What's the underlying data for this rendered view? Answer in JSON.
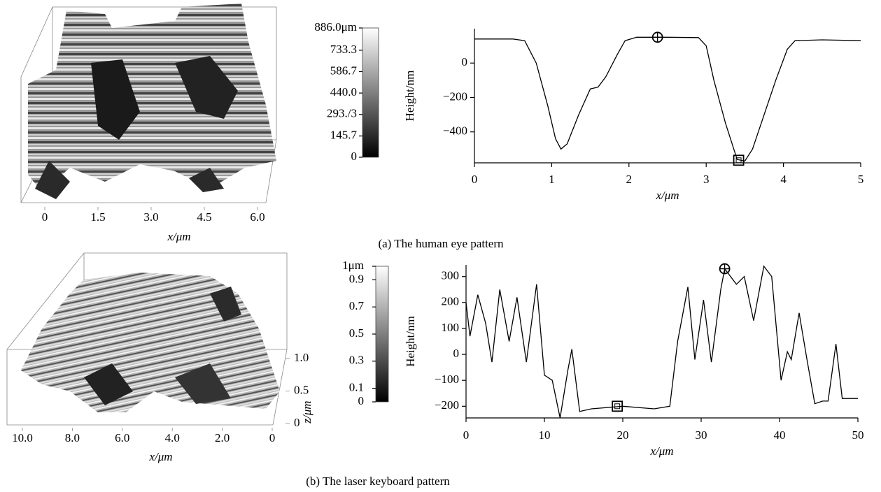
{
  "chart_data": [
    {
      "type": "surface",
      "xlabel": "x/μm",
      "xlim": [
        0,
        6
      ],
      "xticks": [
        0,
        1.5,
        {
          "value": 3,
          "label": "3.0"
        },
        4.5,
        {
          "value": 6,
          "label": "6.0"
        }
      ]
    },
    {
      "type": "colorbar",
      "ylim": [
        0,
        886
      ],
      "colors": [
        "#000000",
        "#ffffff"
      ],
      "yticks": [
        0,
        145.7,
        {
          "value": 293.3,
          "label": "293./3"
        },
        {
          "value": 440,
          "label": "440.0"
        },
        586.7,
        733.3,
        {
          "value": 886,
          "label": "886.0μm"
        }
      ]
    },
    {
      "type": "line",
      "xlabel": "x/μm",
      "ylabel": "Height/nm",
      "color": "#000000",
      "xlim": [
        0,
        5
      ],
      "ylim": [
        -580,
        200
      ],
      "xticks": [
        0,
        1,
        2,
        3,
        4,
        5
      ],
      "yticks": [
        {
          "value": -400,
          "label": "−400"
        },
        {
          "value": -200,
          "label": "−200"
        },
        0
      ],
      "x": [
        0,
        0.5,
        0.65,
        0.8,
        0.95,
        1.05,
        1.12,
        1.2,
        1.35,
        1.5,
        1.6,
        1.7,
        1.85,
        1.95,
        2.1,
        2.5,
        2.9,
        3.0,
        3.1,
        3.25,
        3.4,
        3.5,
        3.6,
        3.75,
        3.9,
        4.05,
        4.15,
        4.5,
        5
      ],
      "y": [
        140,
        140,
        130,
        0,
        -250,
        -440,
        -500,
        -470,
        -300,
        -150,
        -140,
        -80,
        50,
        130,
        150,
        150,
        148,
        100,
        -100,
        -350,
        -560,
        -570,
        -500,
        -300,
        -100,
        80,
        130,
        135,
        130
      ],
      "markers": [
        {
          "x": 2.37,
          "y": 150,
          "shape": "circle-cross"
        },
        {
          "x": 3.42,
          "y": -565,
          "shape": "square"
        }
      ]
    },
    {
      "type": "surface",
      "xlabel": "x/μm",
      "xlim": [
        10,
        0
      ],
      "xticks": [
        {
          "value": 10,
          "label": "10.0"
        },
        {
          "value": 8,
          "label": "8.0"
        },
        {
          "value": 6,
          "label": "6.0"
        },
        {
          "value": 4,
          "label": "4.0"
        },
        {
          "value": 2,
          "label": "2.0"
        },
        0
      ],
      "zlabel": "z/μm",
      "zlim": [
        0,
        1
      ],
      "zticks": [
        0,
        0.5,
        {
          "value": 1,
          "label": "1.0"
        }
      ]
    },
    {
      "type": "colorbar",
      "ylim": [
        0,
        1
      ],
      "colors": [
        "#000000",
        "#ffffff"
      ],
      "yticks": [
        0,
        0.1,
        0.3,
        0.5,
        0.7,
        0.9,
        {
          "value": 1,
          "label": "1μm"
        }
      ]
    },
    {
      "type": "line",
      "xlabel": "x/μm",
      "ylabel": "Height/nm",
      "color": "#000000",
      "xlim": [
        0,
        50
      ],
      "ylim": [
        -245,
        345
      ],
      "xticks": [
        0,
        10,
        20,
        30,
        40,
        50
      ],
      "yticks": [
        {
          "value": -200,
          "label": "−200"
        },
        {
          "value": -100,
          "label": "−100"
        },
        0,
        100,
        200,
        300
      ],
      "x": [
        0,
        0.5,
        1.5,
        2.5,
        3.3,
        4.3,
        5.5,
        6.5,
        7.7,
        9,
        10,
        11,
        12,
        13,
        13.5,
        14.5,
        16,
        20,
        24,
        26,
        27,
        28.3,
        29.2,
        30.3,
        31.3,
        32.5,
        33,
        34.5,
        35.5,
        36.7,
        38,
        39,
        40.2,
        41,
        41.5,
        42.5,
        43.5,
        44.5,
        45.5,
        46.2,
        47.2,
        48,
        50
      ],
      "y": [
        200,
        70,
        230,
        120,
        -30,
        250,
        50,
        220,
        -30,
        270,
        -80,
        -100,
        -245,
        -60,
        20,
        -220,
        -210,
        -200,
        -210,
        -200,
        50,
        260,
        -20,
        210,
        -30,
        250,
        330,
        270,
        300,
        130,
        340,
        300,
        -100,
        10,
        -20,
        160,
        -20,
        -190,
        -180,
        -180,
        40,
        -170,
        -170
      ],
      "markers": [
        {
          "x": 33,
          "y": 330,
          "shape": "circle-cross"
        },
        {
          "x": 19.3,
          "y": -200,
          "shape": "square"
        }
      ]
    }
  ],
  "captions": [
    "(a) The human eye pattern",
    "(b) The laser keyboard pattern"
  ]
}
